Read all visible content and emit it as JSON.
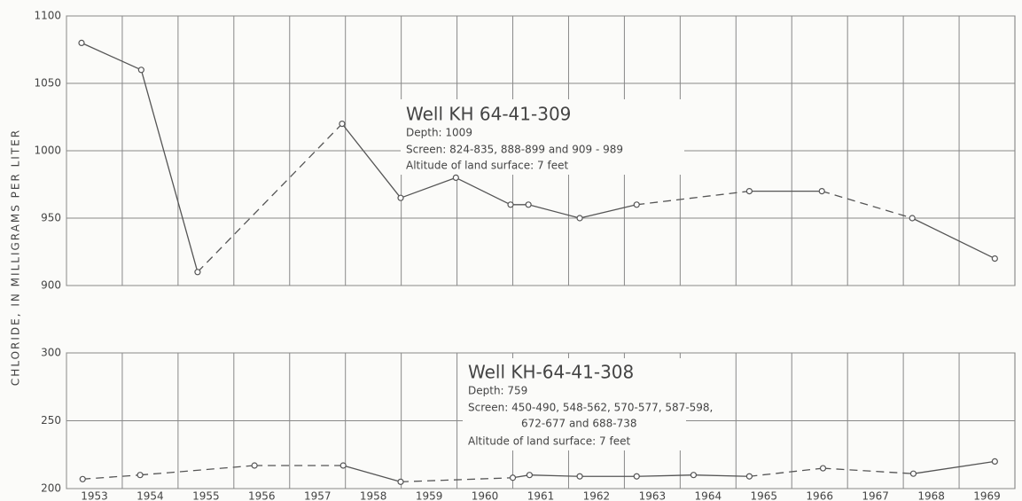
{
  "chart_data": [
    {
      "type": "line",
      "ylabel": "CHLORIDE, IN MILLIGRAMS PER LITER",
      "xlim": [
        1953,
        1970
      ],
      "xticks": [
        1953,
        1954,
        1955,
        1956,
        1957,
        1958,
        1959,
        1960,
        1961,
        1962,
        1963,
        1964,
        1965,
        1966,
        1967,
        1968,
        1969
      ],
      "x_tick_labels": false,
      "ylim": [
        900,
        1100
      ],
      "yticks": [
        900,
        950,
        1000,
        1050,
        1100
      ],
      "grid": true,
      "annotation": {
        "title": "Well KH 64-41-309",
        "lines": [
          "Depth: 1009",
          "Screen: 824-835, 888-899 and 909 - 989",
          "Altitude of land surface: 7 feet"
        ]
      },
      "series": [
        {
          "color": "#555555",
          "x": [
            1953.27,
            1954.34,
            1955.35,
            1957.94,
            1958.99,
            1959.98,
            1960.96,
            1961.28,
            1962.2,
            1963.22,
            1965.24,
            1966.54,
            1968.16,
            1969.64
          ],
          "values": [
            1080,
            1060,
            910,
            1020,
            965,
            980,
            960,
            960,
            950,
            960,
            970,
            970,
            950,
            920
          ],
          "segment_styles": [
            "solid",
            "solid",
            "dashed",
            "solid",
            "solid",
            "solid",
            "solid",
            "solid",
            "solid",
            "dashed",
            "solid",
            "dashed",
            "solid"
          ]
        }
      ]
    },
    {
      "type": "line",
      "xlim": [
        1953,
        1970
      ],
      "xticks": [
        1953,
        1954,
        1955,
        1956,
        1957,
        1958,
        1959,
        1960,
        1961,
        1962,
        1963,
        1964,
        1965,
        1966,
        1967,
        1968,
        1969
      ],
      "x_tick_labels": true,
      "ylim": [
        200,
        300
      ],
      "yticks": [
        200,
        250,
        300
      ],
      "grid": true,
      "annotation": {
        "title": "Well KH-64-41-308",
        "lines": [
          "Depth: 759",
          "Screen: 450-490, 548-562, 570-577, 587-598,",
          "672-677 and 688-738",
          "Altitude of land surface: 7 feet"
        ]
      },
      "series": [
        {
          "color": "#555555",
          "x": [
            1953.29,
            1954.32,
            1956.37,
            1957.96,
            1958.99,
            1961.0,
            1961.3,
            1962.2,
            1963.22,
            1964.24,
            1965.24,
            1966.56,
            1968.18,
            1969.64
          ],
          "values": [
            207,
            210,
            217,
            217,
            205,
            208,
            210,
            209,
            209,
            210,
            209,
            215,
            211,
            220
          ],
          "segment_styles": [
            "dashed",
            "dashed",
            "dashed",
            "solid",
            "dashed",
            "solid",
            "solid",
            "solid",
            "solid",
            "solid",
            "dashed",
            "dashed",
            "solid"
          ]
        }
      ]
    }
  ]
}
